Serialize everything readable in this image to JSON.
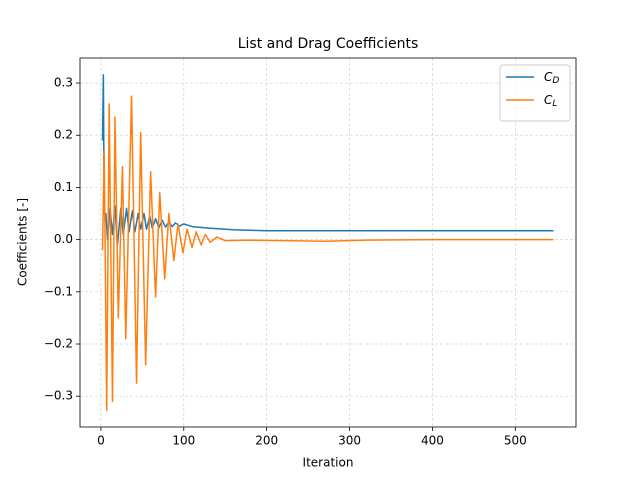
{
  "chart_data": {
    "type": "line",
    "title": "List and Drag Coefficients",
    "x_label": "Iteration",
    "y_label": "Coefficients [-]",
    "xlim": [
      -25.2,
      573.2
    ],
    "ylim": [
      -0.359,
      0.348
    ],
    "xticks": [
      0,
      100,
      200,
      300,
      400,
      500
    ],
    "yticks": [
      {
        "value": -0.3,
        "label": "−0.3"
      },
      {
        "value": -0.2,
        "label": "−0.2"
      },
      {
        "value": -0.1,
        "label": "−0.1"
      },
      {
        "value": 0,
        "label": "0.0"
      },
      0.1,
      0.2,
      0.3
    ],
    "grid": true,
    "legend": "upper right",
    "series": [
      {
        "name": "CD",
        "color": "#1f77b4",
        "x": [
          2,
          3,
          4,
          6,
          8,
          11,
          14,
          17,
          20,
          24,
          27,
          31,
          34,
          38,
          41,
          45,
          48,
          52,
          55,
          59,
          62,
          66,
          70,
          74,
          78,
          82,
          86,
          90,
          95,
          100,
          110,
          130,
          160,
          200,
          300,
          546
        ],
        "values": [
          0.19,
          0.316,
          0.05,
          0.05,
          0.0,
          0.06,
          0.01,
          0.065,
          -0.01,
          0.06,
          0.01,
          0.06,
          0.015,
          0.055,
          0.015,
          0.05,
          0.02,
          0.05,
          0.02,
          0.045,
          0.022,
          0.04,
          0.023,
          0.037,
          0.024,
          0.034,
          0.025,
          0.032,
          0.026,
          0.03,
          0.025,
          0.022,
          0.019,
          0.017,
          0.017,
          0.017
        ]
      },
      {
        "name": "CL",
        "color": "#ff7f0e",
        "x": [
          2,
          4,
          7,
          10,
          14,
          17,
          21,
          26,
          30,
          37,
          43,
          48,
          54,
          60,
          66,
          71,
          77,
          82,
          88,
          93,
          99,
          104,
          110,
          115,
          121,
          126,
          132,
          140,
          150,
          180,
          220,
          270,
          320,
          400,
          546
        ],
        "values": [
          -0.02,
          0.17,
          -0.327,
          0.26,
          -0.31,
          0.235,
          -0.15,
          0.14,
          -0.19,
          0.275,
          -0.275,
          0.205,
          -0.24,
          0.13,
          -0.11,
          0.09,
          -0.075,
          0.05,
          -0.04,
          0.03,
          -0.025,
          0.02,
          -0.015,
          0.015,
          -0.01,
          0.01,
          -0.005,
          0.005,
          -0.002,
          -0.001,
          -0.002,
          -0.003,
          -0.001,
          0,
          0
        ]
      }
    ]
  }
}
